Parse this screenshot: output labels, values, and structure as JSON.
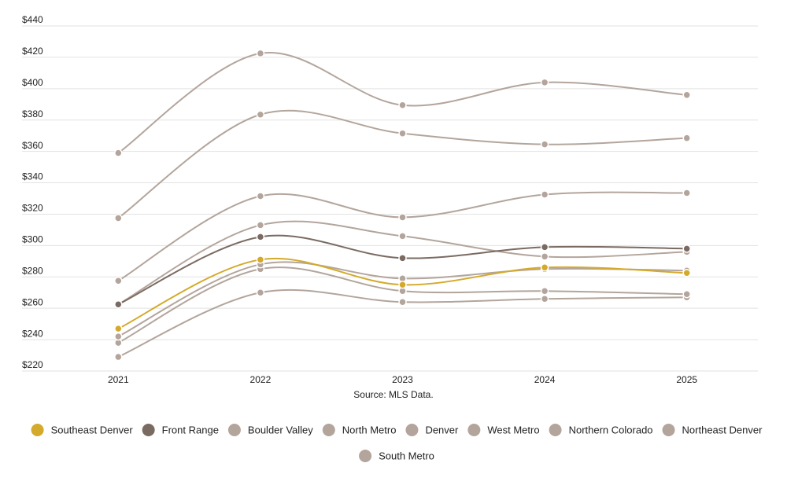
{
  "chart_data": {
    "type": "line",
    "source": "Source: MLS Data.",
    "categories": [
      "2021",
      "2022",
      "2023",
      "2024",
      "2025"
    ],
    "series": [
      {
        "name": "Southeast Denver",
        "color": "#d4aa2c",
        "values": [
          247,
          291,
          275,
          286,
          282.5
        ]
      },
      {
        "name": "Front Range",
        "color": "#7a6b62",
        "values": [
          262.5,
          305.5,
          292,
          299,
          298
        ]
      },
      {
        "name": "Boulder Valley",
        "color": "#b3a59c",
        "values": [
          317.5,
          383.5,
          371.5,
          364.5,
          368.5
        ]
      },
      {
        "name": "North Metro",
        "color": "#b3a59c",
        "values": [
          277.5,
          331.5,
          318,
          332.5,
          333.5
        ]
      },
      {
        "name": "Denver",
        "color": "#b3a59c",
        "values": [
          262.5,
          313,
          306,
          293,
          296
        ]
      },
      {
        "name": "West Metro",
        "color": "#b3a59c",
        "values": [
          242,
          288,
          279,
          285,
          284
        ]
      },
      {
        "name": "Northern Colorado",
        "color": "#b3a59c",
        "values": [
          238,
          285,
          271,
          271,
          269
        ]
      },
      {
        "name": "Northeast Denver",
        "color": "#b3a59c",
        "values": [
          229,
          270,
          264,
          266,
          267
        ]
      },
      {
        "name": "South Metro",
        "color": "#b3a59c",
        "values": [
          359,
          422.5,
          389.5,
          404,
          396
        ]
      }
    ],
    "ylim": [
      220,
      440
    ],
    "yticks": [
      {
        "value": 220,
        "label": "$220"
      },
      {
        "value": 240,
        "label": "$240"
      },
      {
        "value": 260,
        "label": "$260"
      },
      {
        "value": 280,
        "label": "$280"
      },
      {
        "value": 300,
        "label": "$300"
      },
      {
        "value": 320,
        "label": "$320"
      },
      {
        "value": 340,
        "label": "$340"
      },
      {
        "value": 360,
        "label": "$360"
      },
      {
        "value": 380,
        "label": "$380"
      },
      {
        "value": 400,
        "label": "$400"
      },
      {
        "value": 420,
        "label": "$420"
      },
      {
        "value": 440,
        "label": "$440"
      }
    ],
    "grid": true
  }
}
